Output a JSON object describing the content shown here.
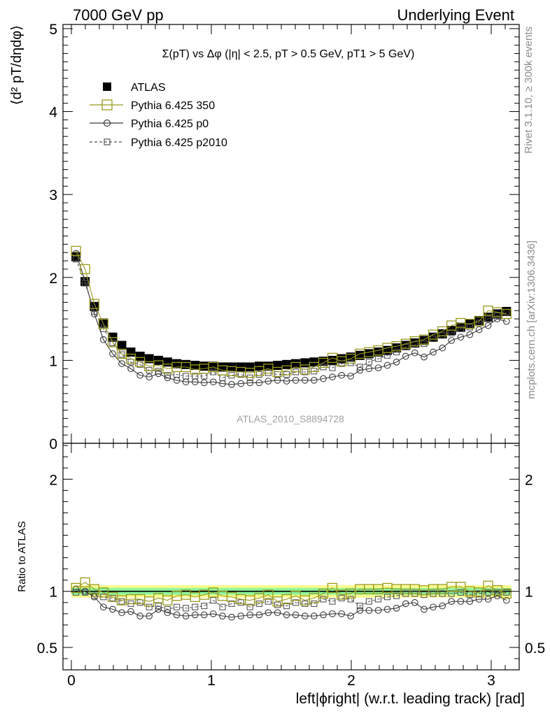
{
  "header": {
    "left": "7000 GeV pp",
    "right": "Underlying Event"
  },
  "side_labels": {
    "rivet": "Rivet 3.1.10, ≥ 300k events",
    "mcplots": "mcplots.cern.ch [arXiv:1306.3436]"
  },
  "watermark": "ATLAS_2010_S8894728",
  "colors": {
    "atlas": "#000000",
    "p350": "#9a9a1e",
    "p0": "#3a3a3a",
    "p2010": "#555555",
    "band_yellow": "#fbfb8c",
    "band_green": "#8ef59b"
  },
  "chart_data": [
    {
      "type": "scatter",
      "title": "Σ(pT) vs Δφ (|η| < 2.5, pT > 0.5 GeV, pT1 > 5 GeV)",
      "ylabel": "⟨d² pT/dηdφ⟩",
      "xlim": [
        -0.06,
        3.2
      ],
      "ylim": [
        0,
        5.05
      ],
      "yticks": [
        0,
        1,
        2,
        3,
        4,
        5
      ],
      "legend_position": "top-left",
      "legend": {
        "atlas": "ATLAS",
        "p350": "Pythia 6.425 350",
        "p0": "Pythia 6.425 p0",
        "p2010": "Pythia 6.425 p2010"
      },
      "x": [
        0.033,
        0.098,
        0.164,
        0.229,
        0.295,
        0.36,
        0.425,
        0.491,
        0.556,
        0.622,
        0.687,
        0.753,
        0.818,
        0.884,
        0.949,
        1.014,
        1.08,
        1.145,
        1.211,
        1.276,
        1.342,
        1.407,
        1.473,
        1.538,
        1.603,
        1.669,
        1.734,
        1.8,
        1.865,
        1.931,
        1.996,
        2.062,
        2.127,
        2.193,
        2.258,
        2.323,
        2.389,
        2.454,
        2.52,
        2.585,
        2.651,
        2.716,
        2.782,
        2.847,
        2.913,
        2.978,
        3.043,
        3.109
      ],
      "series": [
        {
          "key": "atlas",
          "name": "ATLAS",
          "values": [
            2.25,
            1.95,
            1.65,
            1.45,
            1.28,
            1.18,
            1.1,
            1.05,
            1.02,
            1.0,
            0.98,
            0.96,
            0.95,
            0.94,
            0.93,
            0.93,
            0.92,
            0.92,
            0.92,
            0.92,
            0.93,
            0.93,
            0.94,
            0.95,
            0.96,
            0.97,
            0.98,
            0.99,
            1.0,
            1.02,
            1.04,
            1.06,
            1.08,
            1.1,
            1.12,
            1.15,
            1.18,
            1.21,
            1.24,
            1.28,
            1.32,
            1.36,
            1.4,
            1.44,
            1.48,
            1.52,
            1.56,
            1.59
          ]
        },
        {
          "key": "p350",
          "name": "Pythia 6.425 350",
          "values": [
            2.32,
            2.1,
            1.68,
            1.44,
            1.22,
            1.08,
            1.02,
            0.98,
            0.93,
            0.94,
            0.9,
            0.92,
            0.92,
            0.89,
            0.9,
            0.92,
            0.88,
            0.87,
            0.86,
            0.85,
            0.87,
            0.9,
            0.86,
            0.88,
            0.92,
            0.89,
            0.92,
            0.97,
            1.03,
            0.99,
            1.02,
            1.08,
            1.1,
            1.12,
            1.15,
            1.17,
            1.2,
            1.23,
            1.25,
            1.31,
            1.35,
            1.42,
            1.45,
            1.44,
            1.47,
            1.6,
            1.58,
            1.56
          ]
        },
        {
          "key": "p0",
          "name": "Pythia 6.425 p0",
          "values": [
            2.29,
            1.96,
            1.56,
            1.25,
            1.08,
            0.96,
            0.9,
            0.82,
            0.8,
            0.84,
            0.79,
            0.76,
            0.74,
            0.74,
            0.73,
            0.74,
            0.72,
            0.71,
            0.72,
            0.73,
            0.73,
            0.75,
            0.76,
            0.75,
            0.76,
            0.76,
            0.76,
            0.78,
            0.8,
            0.82,
            0.81,
            0.88,
            0.9,
            0.91,
            0.94,
            0.98,
            1.05,
            1.09,
            1.04,
            1.1,
            1.15,
            1.24,
            1.28,
            1.31,
            1.37,
            1.42,
            1.5,
            1.47
          ]
        },
        {
          "key": "p2010",
          "name": "Pythia 6.425 p2010",
          "values": [
            2.22,
            1.93,
            1.59,
            1.38,
            1.21,
            1.07,
            0.98,
            0.95,
            0.88,
            0.87,
            0.82,
            0.83,
            0.81,
            0.81,
            0.81,
            0.86,
            0.79,
            0.82,
            0.83,
            0.79,
            0.83,
            0.85,
            0.83,
            0.83,
            0.86,
            0.86,
            0.87,
            0.92,
            0.91,
            0.96,
            0.97,
            0.92,
            0.98,
            1.02,
            1.06,
            1.1,
            1.16,
            1.19,
            1.2,
            1.26,
            1.3,
            1.33,
            1.38,
            1.4,
            1.45,
            1.5,
            1.54,
            1.58
          ]
        }
      ]
    },
    {
      "type": "scatter",
      "ylabel": "Ratio to ATLAS",
      "xlabel": "left|ϕright| (w.r.t. leading track) [rad]",
      "xlim": [
        -0.06,
        3.2
      ],
      "ylim": [
        0.3,
        2.32
      ],
      "yticks": [
        0.5,
        1,
        2
      ],
      "ytick_labels": [
        "0.5",
        "1",
        "2"
      ],
      "xticks": [
        0,
        1,
        2,
        3
      ],
      "xtick_labels": [
        "0",
        "1",
        "2",
        "3"
      ],
      "band_yellow": [
        0.945,
        1.055
      ],
      "band_green": [
        0.97,
        1.03
      ],
      "series": [
        {
          "key": "p350",
          "name": "Pythia 6.425 350",
          "values": [
            1.03,
            1.08,
            1.02,
            0.99,
            0.95,
            0.92,
            0.93,
            0.93,
            0.91,
            0.94,
            0.92,
            0.96,
            0.97,
            0.95,
            0.97,
            0.99,
            0.96,
            0.95,
            0.93,
            0.92,
            0.94,
            0.97,
            0.91,
            0.93,
            0.96,
            0.92,
            0.94,
            0.98,
            1.03,
            0.97,
            0.98,
            1.02,
            1.02,
            1.02,
            1.03,
            1.02,
            1.02,
            1.02,
            1.01,
            1.02,
            1.02,
            1.04,
            1.04,
            1.0,
            0.99,
            1.05,
            1.01,
            0.98
          ]
        },
        {
          "key": "p0",
          "name": "Pythia 6.425 p0",
          "values": [
            1.02,
            1.0,
            0.95,
            0.86,
            0.84,
            0.81,
            0.82,
            0.78,
            0.78,
            0.84,
            0.81,
            0.79,
            0.78,
            0.79,
            0.79,
            0.8,
            0.78,
            0.77,
            0.78,
            0.79,
            0.79,
            0.81,
            0.81,
            0.79,
            0.79,
            0.78,
            0.78,
            0.79,
            0.8,
            0.8,
            0.78,
            0.83,
            0.83,
            0.83,
            0.84,
            0.85,
            0.89,
            0.9,
            0.84,
            0.86,
            0.87,
            0.91,
            0.91,
            0.91,
            0.93,
            0.93,
            0.96,
            0.92
          ]
        },
        {
          "key": "p2010",
          "name": "Pythia 6.425 p2010",
          "values": [
            0.99,
            0.99,
            0.96,
            0.95,
            0.94,
            0.91,
            0.89,
            0.9,
            0.86,
            0.87,
            0.84,
            0.86,
            0.85,
            0.86,
            0.87,
            0.92,
            0.86,
            0.89,
            0.9,
            0.86,
            0.89,
            0.91,
            0.88,
            0.87,
            0.9,
            0.89,
            0.89,
            0.93,
            0.91,
            0.94,
            0.93,
            0.87,
            0.91,
            0.93,
            0.95,
            0.96,
            0.98,
            0.98,
            0.97,
            0.98,
            0.98,
            0.98,
            0.99,
            0.97,
            0.98,
            0.99,
            0.99,
            0.99
          ]
        }
      ]
    }
  ]
}
